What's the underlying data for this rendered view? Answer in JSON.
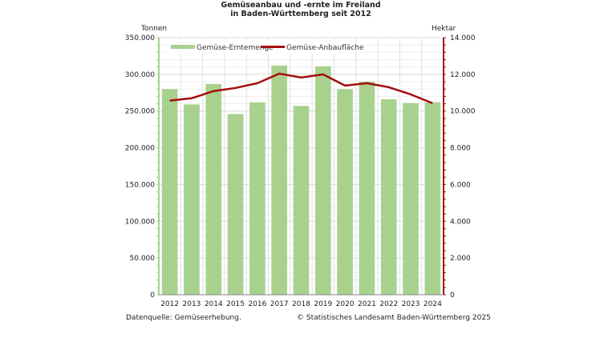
{
  "chart_data": {
    "type": "bar",
    "title": [
      "Gemüseanbau und -ernte im Freiland",
      "in Baden-Württemberg seit 2012"
    ],
    "categories": [
      "2012",
      "2013",
      "2014",
      "2015",
      "2016",
      "2017",
      "2018",
      "2019",
      "2020",
      "2021",
      "2022",
      "2023",
      "2024"
    ],
    "series": [
      {
        "name": "Gemüse-Erntemenge",
        "type": "bar",
        "axis": "left",
        "color": "#a9d18e",
        "values": [
          280000,
          259000,
          287000,
          246000,
          262000,
          312000,
          257000,
          311000,
          280000,
          290000,
          266000,
          261000,
          262000
        ]
      },
      {
        "name": "Gemüse-Anbaufläche",
        "type": "line",
        "axis": "right",
        "color": "#a50e0e",
        "values": [
          10570,
          10700,
          11090,
          11260,
          11520,
          12040,
          11830,
          12000,
          11390,
          11520,
          11300,
          10910,
          10430
        ]
      }
    ],
    "left_axis": {
      "label": "Tonnen",
      "ylim": [
        0,
        350000
      ],
      "ticks": [
        "0",
        "50.000",
        "100.000",
        "150.000",
        "200.000",
        "250.000",
        "300.000",
        "350.000"
      ]
    },
    "right_axis": {
      "label": "Hektar",
      "ylim": [
        0,
        14000
      ],
      "ticks": [
        "0",
        "2.000",
        "4.000",
        "6.000",
        "8.000",
        "10.000",
        "12.000",
        "14.000"
      ]
    },
    "grid": true,
    "legend": "top-left"
  },
  "footer": {
    "source": "Datenquelle: Gemüseerhebung.",
    "copyright": "© Statistisches Landesamt Baden-Württemberg 2025"
  }
}
